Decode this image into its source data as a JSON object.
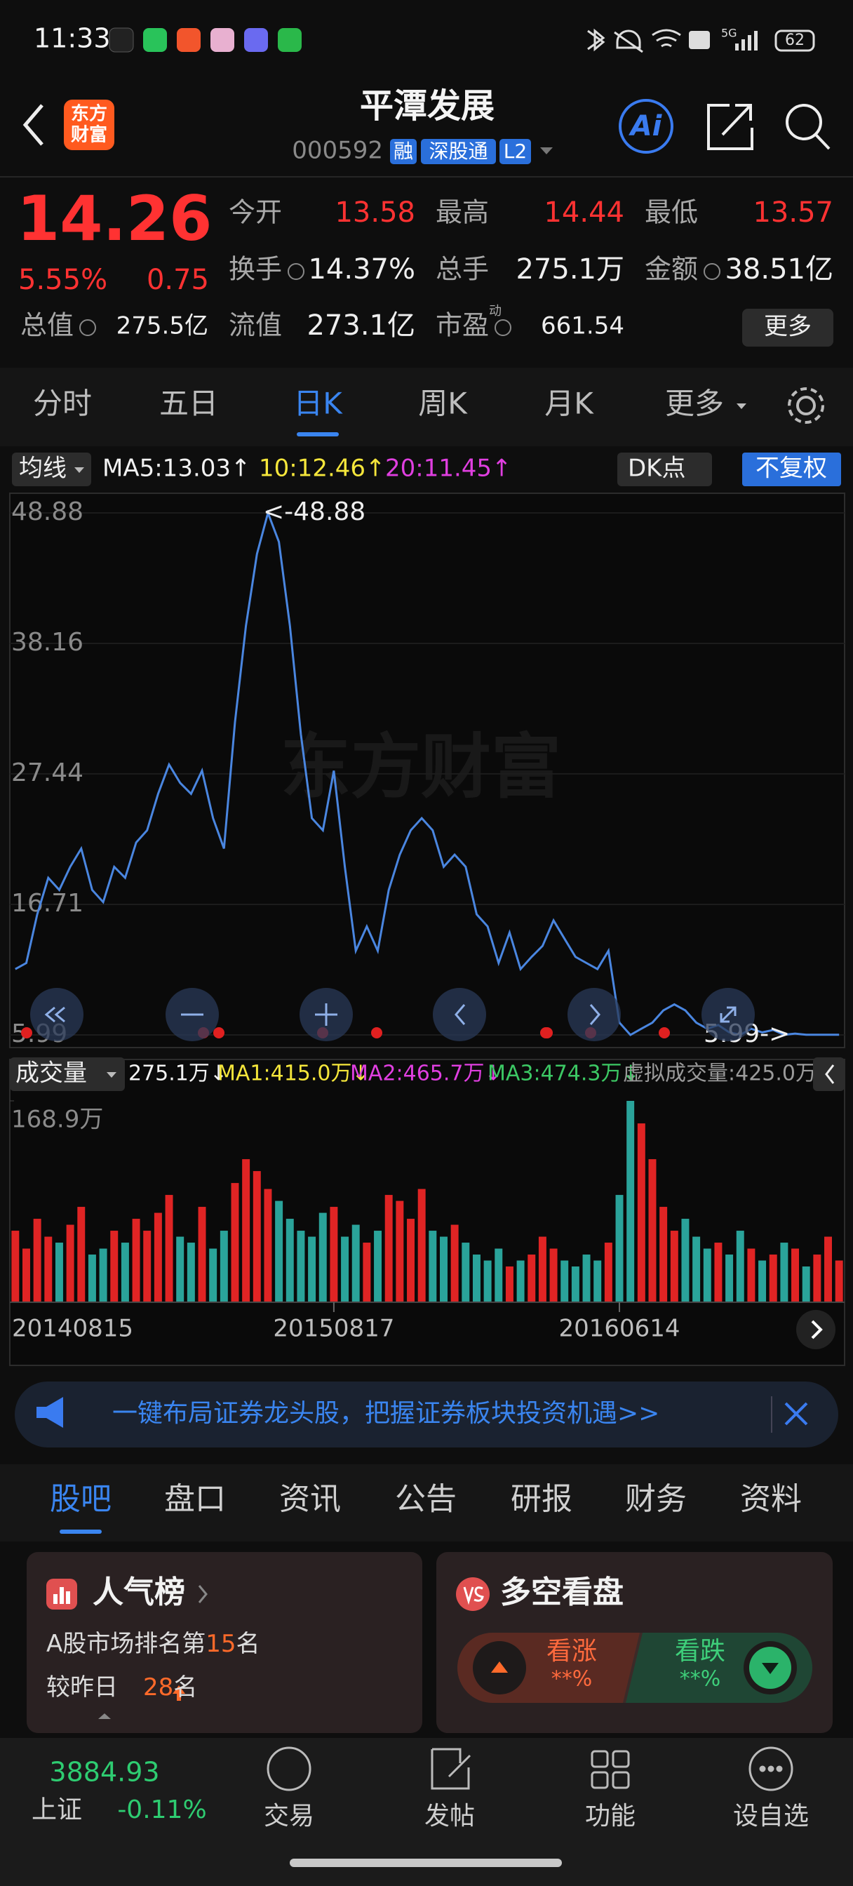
{
  "status_bar": {
    "time": "11:33",
    "network": "5G",
    "battery": "62"
  },
  "header": {
    "logo": [
      "东方",
      "财富"
    ],
    "title": "平潭发展",
    "code": "000592",
    "tags": [
      "融",
      "深股通",
      "L2"
    ],
    "ai": "Ai"
  },
  "quote": {
    "price": "14.26",
    "change_pct": "5.55%",
    "change": "0.75",
    "stats": [
      [
        {
          "label": "今开",
          "value": "13.58"
        },
        {
          "label": "最高",
          "value": "14.44"
        },
        {
          "label": "最低",
          "value": "13.57"
        }
      ],
      [
        {
          "label": "换手",
          "value": "14.37%"
        },
        {
          "label": "总手",
          "value": "275.1万"
        },
        {
          "label": "金额",
          "value": "38.51亿"
        }
      ],
      [
        {
          "label": "总值",
          "value": "275.5亿"
        },
        {
          "label": "流值",
          "value": "273.1亿"
        },
        {
          "label": "市盈",
          "sup": "动",
          "value": "661.54"
        }
      ]
    ],
    "more": "更多"
  },
  "tabs": {
    "items": [
      "分时",
      "五日",
      "日K",
      "周K",
      "月K",
      "更多"
    ],
    "active": 2
  },
  "ma_bar": {
    "selector": "均线",
    "items": [
      {
        "text": "MA5:13.03↑",
        "color": "#f2f2f2"
      },
      {
        "text": "10:12.46↑",
        "color": "#f5e63b"
      },
      {
        "text": "20:11.45↑",
        "color": "#e03fe0"
      }
    ],
    "dk": "DK点",
    "adjust": "不复权"
  },
  "watermark": "东方财富",
  "chart_data": [
    {
      "type": "line",
      "color": "#4a86e0",
      "grid": true,
      "ylim": [
        5.99,
        48.88
      ],
      "yticks": [
        48.88,
        38.16,
        27.44,
        16.71,
        5.99
      ],
      "annotations": {
        "max": "<-48.88",
        "min": "5.99->"
      },
      "categories": [
        "20140815",
        null,
        null,
        null,
        null,
        null,
        null,
        null,
        null,
        null,
        null,
        null,
        null,
        null,
        null,
        null,
        null,
        null,
        null,
        null,
        null,
        null,
        null,
        null,
        null,
        null,
        null,
        null,
        null,
        "20150817",
        null,
        null,
        null,
        null,
        null,
        null,
        null,
        null,
        null,
        null,
        null,
        null,
        null,
        null,
        null,
        null,
        null,
        null,
        null,
        null,
        null,
        null,
        null,
        null,
        null,
        "20160614",
        null,
        null,
        null,
        null,
        null,
        null,
        null,
        null,
        null,
        null,
        null,
        null,
        null,
        null,
        null,
        null,
        null,
        null,
        null,
        null
      ],
      "values": [
        11.4,
        11.9,
        15.9,
        18.9,
        17.9,
        19.8,
        21.3,
        17.9,
        16.9,
        19.8,
        18.9,
        21.8,
        22.8,
        25.8,
        28.2,
        26.7,
        25.8,
        27.7,
        23.8,
        21.3,
        31.7,
        39.6,
        45.5,
        48.88,
        46.5,
        39.6,
        30.7,
        23.8,
        22.8,
        27.7,
        19.8,
        12.9,
        14.9,
        12.9,
        17.9,
        20.8,
        22.8,
        23.8,
        22.8,
        19.8,
        20.8,
        19.8,
        15.9,
        14.9,
        11.9,
        14.4,
        11.4,
        12.4,
        13.3,
        15.4,
        13.9,
        12.4,
        11.9,
        11.4,
        12.9,
        7.0,
        5.99,
        6.5,
        7.0,
        8.0,
        8.5,
        8.0,
        7.0,
        6.5,
        6.8,
        6.2,
        6.0,
        6.5,
        6.2,
        6.4,
        6.0,
        6.1,
        6.0,
        6.0,
        6.0,
        6.0
      ]
    },
    {
      "type": "bar",
      "title": "成交量",
      "color": "#e02424",
      "down_color": "#2aa39a",
      "grid": false,
      "ylim": [
        0,
        168.9
      ],
      "yticks": [
        {
          "value": 168.9,
          "label": "168.9万"
        }
      ],
      "legend": [
        {
          "text": "275.1万↓",
          "color": "#f2f2f2"
        },
        {
          "text": "MA1:415.0万↓",
          "color": "#f5e63b"
        },
        {
          "text": "MA2:465.7万↓",
          "color": "#e03fe0"
        },
        {
          "text": "MA3:474.3万↓",
          "color": "#3cc864"
        },
        {
          "text": "虚拟成交量:425.0万",
          "color": "#9a9a9a"
        }
      ],
      "values": [
        60,
        45,
        70,
        55,
        50,
        65,
        80,
        40,
        45,
        60,
        50,
        70,
        60,
        75,
        90,
        55,
        50,
        80,
        45,
        60,
        100,
        120,
        110,
        95,
        85,
        70,
        60,
        55,
        75,
        80,
        55,
        65,
        50,
        60,
        90,
        85,
        70,
        95,
        60,
        55,
        65,
        50,
        40,
        35,
        45,
        30,
        35,
        40,
        55,
        45,
        35,
        30,
        40,
        35,
        50,
        90,
        168.9,
        150,
        120,
        80,
        60,
        70,
        55,
        45,
        50,
        40,
        60,
        45,
        35,
        40,
        50,
        45,
        30,
        40,
        55,
        35
      ]
    }
  ],
  "banner": {
    "text": "一键布局证券龙头股，把握证券板块投资机遇>>"
  },
  "content_tabs": {
    "items": [
      "股吧",
      "盘口",
      "资讯",
      "公告",
      "研报",
      "财务",
      "资料"
    ],
    "active": 0
  },
  "cards": {
    "popularity": {
      "title": "人气榜",
      "rank": [
        "A股市场排名第",
        "15",
        "名"
      ],
      "change": [
        "较昨日",
        "28",
        "名"
      ]
    },
    "sentiment": {
      "title": "多空看盘",
      "bull": "看涨",
      "bull_value": "**%",
      "bear": "看跌",
      "bear_value": "**%"
    }
  },
  "bottom_nav": {
    "index_value": "3884.93",
    "index_name": "上证",
    "index_change": "-0.11%",
    "items": [
      "交易",
      "发帖",
      "功能",
      "设自选"
    ]
  }
}
